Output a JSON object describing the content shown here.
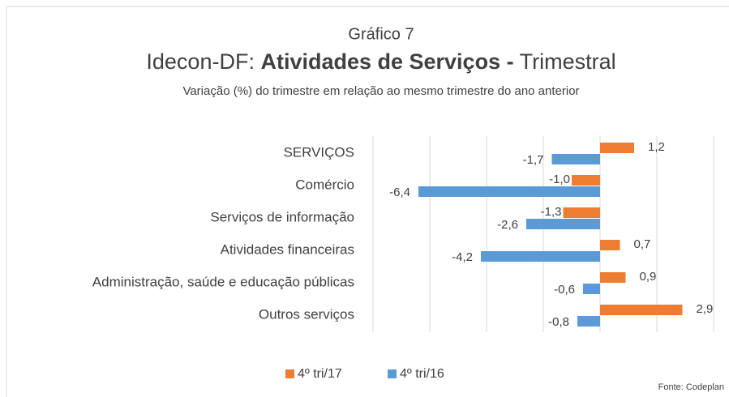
{
  "chart_data": {
    "type": "hbar",
    "caption": "Gráfico 7",
    "title": {
      "prefix": "Idecon-DF: ",
      "bold": "Atividades de Serviços -",
      "suffix": " Trimestral"
    },
    "subtitle": "Variação (%) do trimestre em relação ao mesmo trimestre do ano anterior",
    "categories": [
      "SERVIÇOS",
      "Comércio",
      "Serviços de informação",
      "Atividades financeiras",
      "Administração, saúde e educação públicas",
      "Outros serviços"
    ],
    "series": [
      {
        "name": "4º tri/17",
        "color": "#ed7d31",
        "values": [
          1.2,
          -1.0,
          -1.3,
          0.7,
          0.9,
          2.9
        ],
        "value_labels": [
          "1,2",
          "-1,0",
          "-1,3",
          "0,7",
          "0,9",
          "2,9"
        ]
      },
      {
        "name": "4º tri/16",
        "color": "#5b9bd5",
        "values": [
          -1.7,
          -6.4,
          -2.6,
          -4.2,
          -0.6,
          -0.8
        ],
        "value_labels": [
          "-1,7",
          "-6,4",
          "-2,6",
          "-4,2",
          "-0,6",
          "-0,8"
        ]
      }
    ],
    "xlim": [
      -8,
      4
    ],
    "xticks": [
      -8,
      -6,
      -4,
      -2,
      0,
      2,
      4
    ],
    "grid": true,
    "show_tick_labels": false,
    "legend": "bottom",
    "source": "Fonte: Codeplan"
  }
}
